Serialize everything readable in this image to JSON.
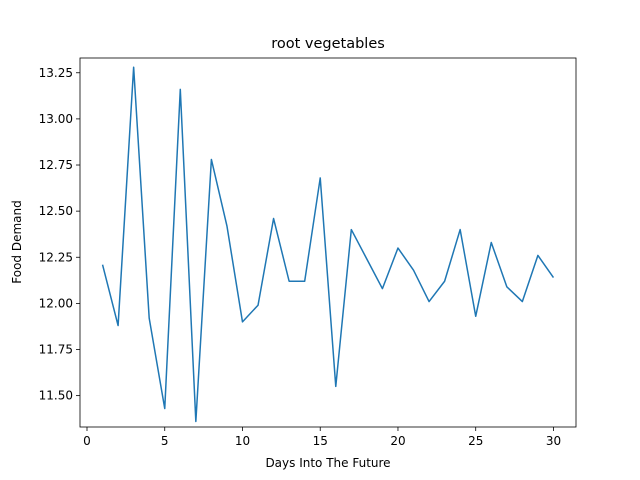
{
  "chart_data": {
    "type": "line",
    "title": "root vegetables",
    "xlabel": "Days Into The Future",
    "ylabel": "Food Demand",
    "xlim": [
      -0.45,
      31.45
    ],
    "ylim": [
      11.33,
      13.33
    ],
    "xticks": [
      0,
      5,
      10,
      15,
      20,
      25,
      30
    ],
    "yticks": [
      11.5,
      11.75,
      12.0,
      12.25,
      12.5,
      12.75,
      13.0,
      13.25
    ],
    "ytick_labels": [
      "11.50",
      "11.75",
      "12.00",
      "12.25",
      "12.50",
      "12.75",
      "13.00",
      "13.25"
    ],
    "grid": false,
    "color": "#1f77b4",
    "series": [
      {
        "x": [
          1,
          2,
          3,
          4,
          5,
          6,
          7,
          8,
          9,
          10,
          11,
          12,
          13,
          14,
          15,
          16,
          17,
          18,
          19,
          20,
          21,
          22,
          23,
          24,
          25,
          26,
          27,
          28,
          29,
          30
        ],
        "values": [
          12.21,
          11.88,
          13.28,
          11.92,
          11.43,
          13.16,
          11.36,
          12.78,
          12.42,
          11.9,
          11.99,
          12.46,
          12.12,
          12.12,
          12.68,
          11.55,
          12.4,
          12.24,
          12.08,
          12.3,
          12.18,
          12.01,
          12.12,
          12.4,
          11.93,
          12.33,
          12.09,
          12.01,
          12.26,
          12.14
        ]
      }
    ]
  }
}
